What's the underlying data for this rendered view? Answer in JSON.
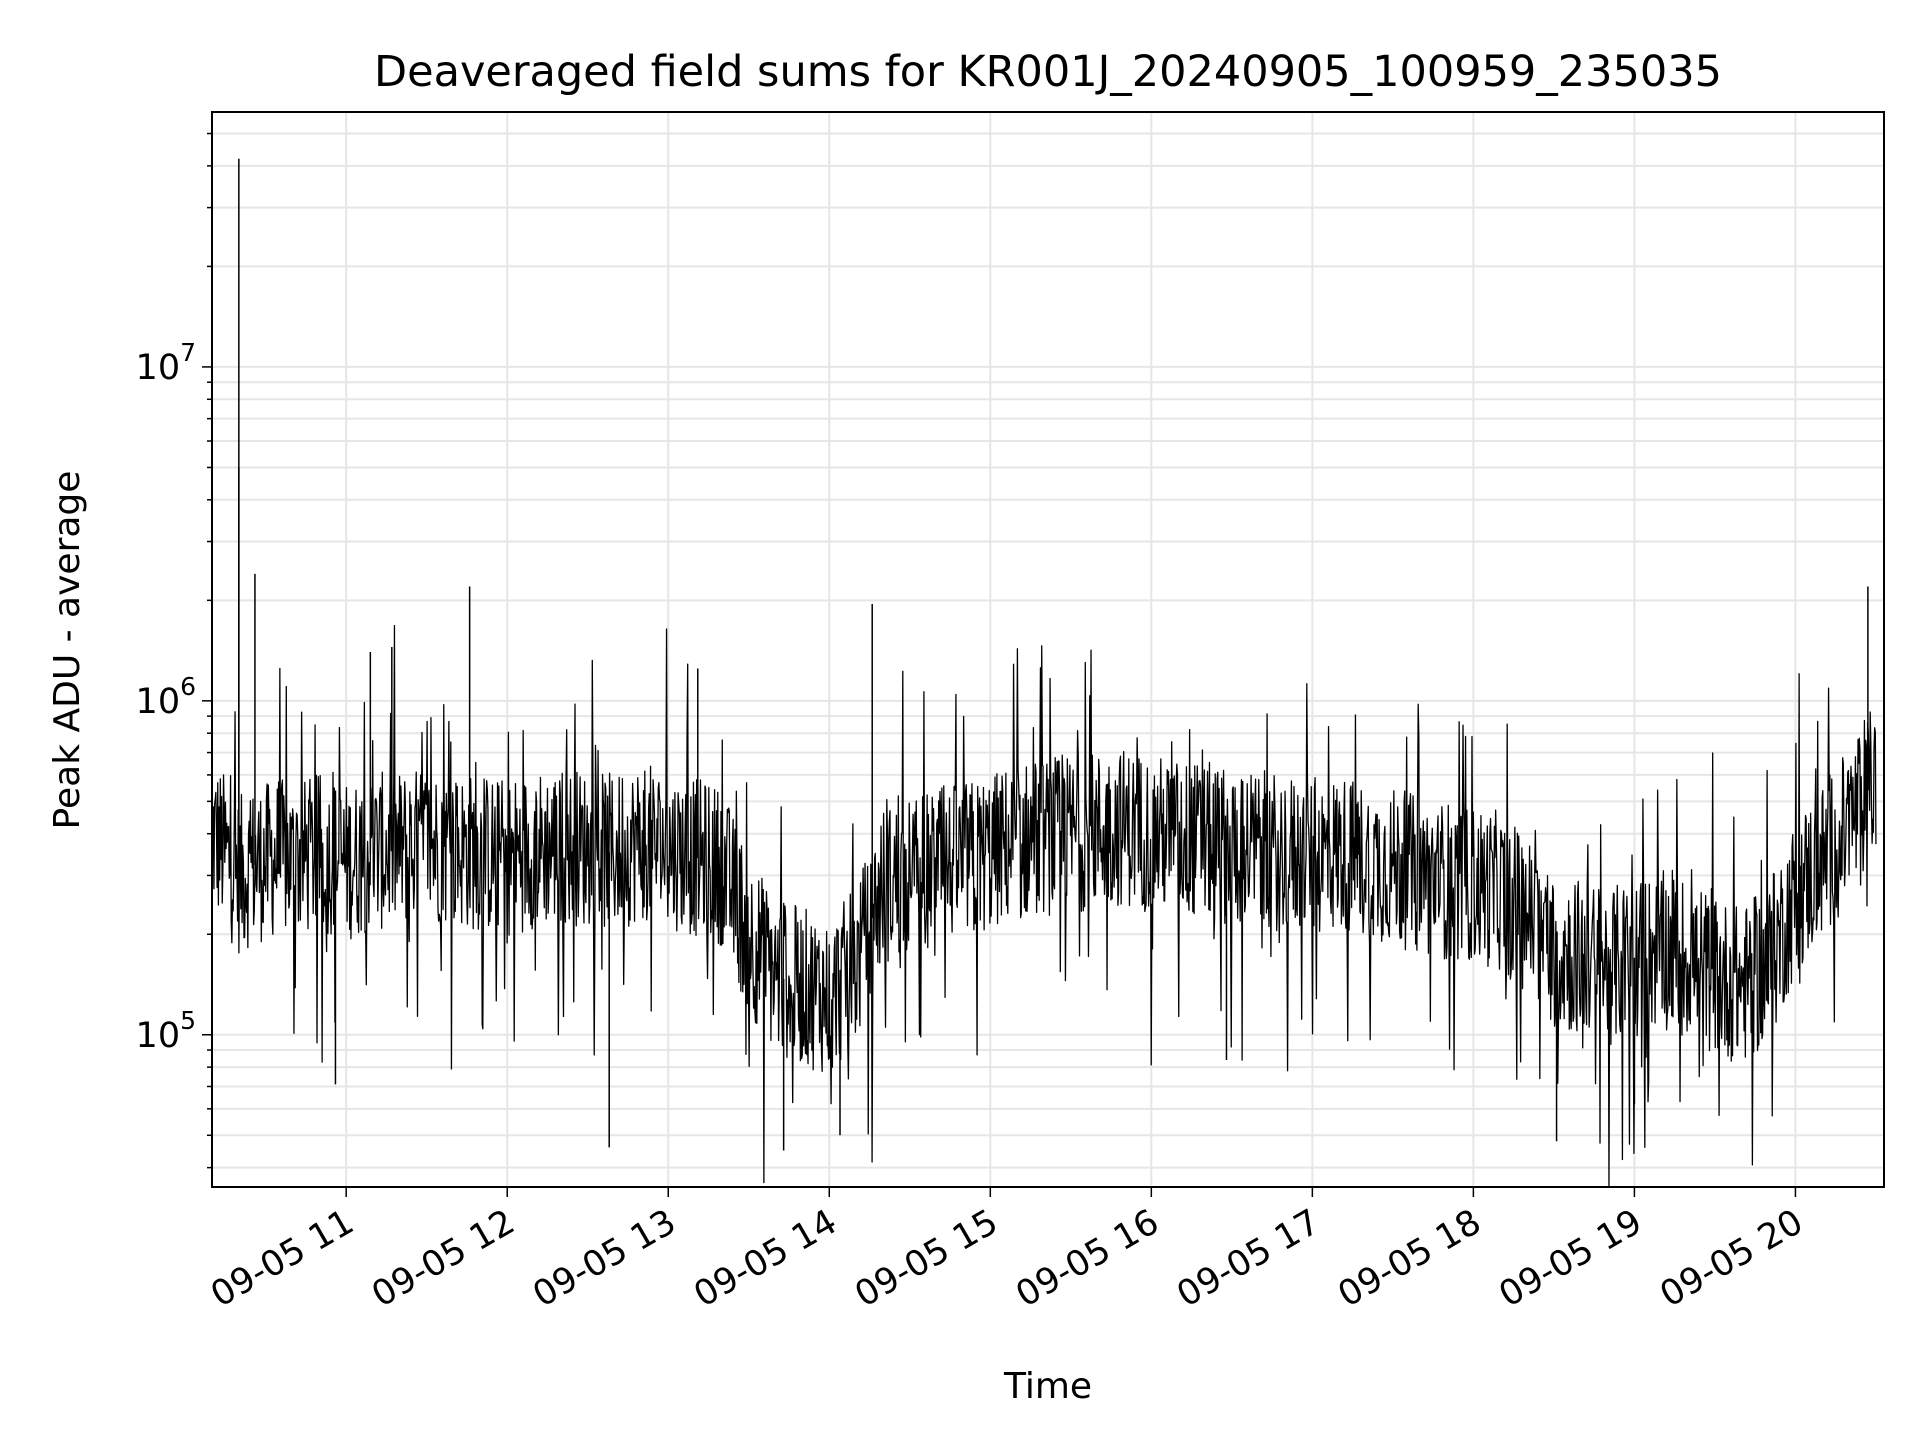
{
  "chart_data": {
    "type": "line",
    "title": "Deaveraged field sums for KR001J_20240905_100959_235035",
    "xlabel": "Time",
    "ylabel": "Peak ADU - average",
    "yscale": "log",
    "xlim": [
      "2024-09-05T10:10",
      "2024-09-05T20:33"
    ],
    "ylim": [
      35000,
      58000000
    ],
    "grid": true,
    "line_color": "#000000",
    "x_tick_labels": [
      "09-05 11",
      "09-05 12",
      "09-05 13",
      "09-05 14",
      "09-05 15",
      "09-05 16",
      "09-05 17",
      "09-05 18",
      "09-05 19",
      "09-05 20"
    ],
    "y_ticks": [
      {
        "value": 100000,
        "base": "10",
        "exp": "5"
      },
      {
        "value": 1000000,
        "base": "10",
        "exp": "6"
      },
      {
        "value": 10000000,
        "base": "10",
        "exp": "7"
      }
    ],
    "series": [
      {
        "x": [
          "2024-09-05T10:10",
          "2024-09-05T10:15",
          "2024-09-05T10:20",
          "2024-09-05T10:25",
          "2024-09-05T10:30",
          "2024-09-05T10:35",
          "2024-09-05T10:40",
          "2024-09-05T10:45",
          "2024-09-05T10:50",
          "2024-09-05T10:55",
          "2024-09-05T11:00",
          "2024-09-05T11:10",
          "2024-09-05T11:20",
          "2024-09-05T11:30",
          "2024-09-05T11:40",
          "2024-09-05T11:50",
          "2024-09-05T12:00",
          "2024-09-05T12:10",
          "2024-09-05T12:20",
          "2024-09-05T12:30",
          "2024-09-05T12:40",
          "2024-09-05T12:50",
          "2024-09-05T13:00",
          "2024-09-05T13:10",
          "2024-09-05T13:20",
          "2024-09-05T13:30",
          "2024-09-05T13:40",
          "2024-09-05T13:50",
          "2024-09-05T14:00",
          "2024-09-05T14:10",
          "2024-09-05T14:20",
          "2024-09-05T14:30",
          "2024-09-05T14:40",
          "2024-09-05T14:50",
          "2024-09-05T15:00",
          "2024-09-05T15:10",
          "2024-09-05T15:20",
          "2024-09-05T15:30",
          "2024-09-05T15:40",
          "2024-09-05T15:50",
          "2024-09-05T16:00",
          "2024-09-05T16:10",
          "2024-09-05T16:20",
          "2024-09-05T16:30",
          "2024-09-05T16:40",
          "2024-09-05T16:50",
          "2024-09-05T17:00",
          "2024-09-05T17:10",
          "2024-09-05T17:20",
          "2024-09-05T17:30",
          "2024-09-05T17:40",
          "2024-09-05T17:50",
          "2024-09-05T18:00",
          "2024-09-05T18:10",
          "2024-09-05T18:20",
          "2024-09-05T18:30",
          "2024-09-05T18:40",
          "2024-09-05T18:50",
          "2024-09-05T19:00",
          "2024-09-05T19:10",
          "2024-09-05T19:20",
          "2024-09-05T19:30",
          "2024-09-05T19:40",
          "2024-09-05T19:50",
          "2024-09-05T20:00",
          "2024-09-05T20:10",
          "2024-09-05T20:20",
          "2024-09-05T20:30"
        ],
        "y": [
          400000,
          350000,
          300000,
          320000,
          330000,
          340000,
          330000,
          340000,
          350000,
          340000,
          330000,
          350000,
          360000,
          370000,
          360000,
          350000,
          340000,
          360000,
          370000,
          360000,
          350000,
          380000,
          360000,
          340000,
          320000,
          200000,
          150000,
          140000,
          130000,
          160000,
          280000,
          300000,
          320000,
          330000,
          350000,
          380000,
          390000,
          400000,
          410000,
          420000,
          400000,
          390000,
          380000,
          370000,
          360000,
          350000,
          340000,
          350000,
          330000,
          320000,
          300000,
          290000,
          280000,
          270000,
          230000,
          180000,
          170000,
          160000,
          170000,
          180000,
          170000,
          150000,
          140000,
          160000,
          260000,
          330000,
          420000,
          600000
        ],
        "spikes": [
          {
            "x": "2024-09-05T10:20",
            "y": 42000000
          },
          {
            "x": "2024-09-05T10:20",
            "y": 5000000
          },
          {
            "x": "2024-09-05T10:26",
            "y": 2400000
          },
          {
            "x": "2024-09-05T11:09",
            "y": 1400000
          },
          {
            "x": "2024-09-05T11:17",
            "y": 1450000
          },
          {
            "x": "2024-09-05T11:46",
            "y": 2200000
          },
          {
            "x": "2024-09-05T13:11",
            "y": 1250000
          },
          {
            "x": "2024-09-05T14:16",
            "y": 1950000
          },
          {
            "x": "2024-09-05T20:27",
            "y": 2200000
          },
          {
            "x": "2024-09-05T13:43",
            "y": 45000
          },
          {
            "x": "2024-09-05T12:38",
            "y": 46000
          },
          {
            "x": "2024-09-05T18:31",
            "y": 48000
          },
          {
            "x": "2024-09-05T14:04",
            "y": 50000
          },
          {
            "x": "2024-09-05T19:00",
            "y": 62000
          },
          {
            "x": "2024-09-05T10:56",
            "y": 71000
          },
          {
            "x": "2024-09-05T16:28",
            "y": 84000
          }
        ]
      }
    ]
  }
}
